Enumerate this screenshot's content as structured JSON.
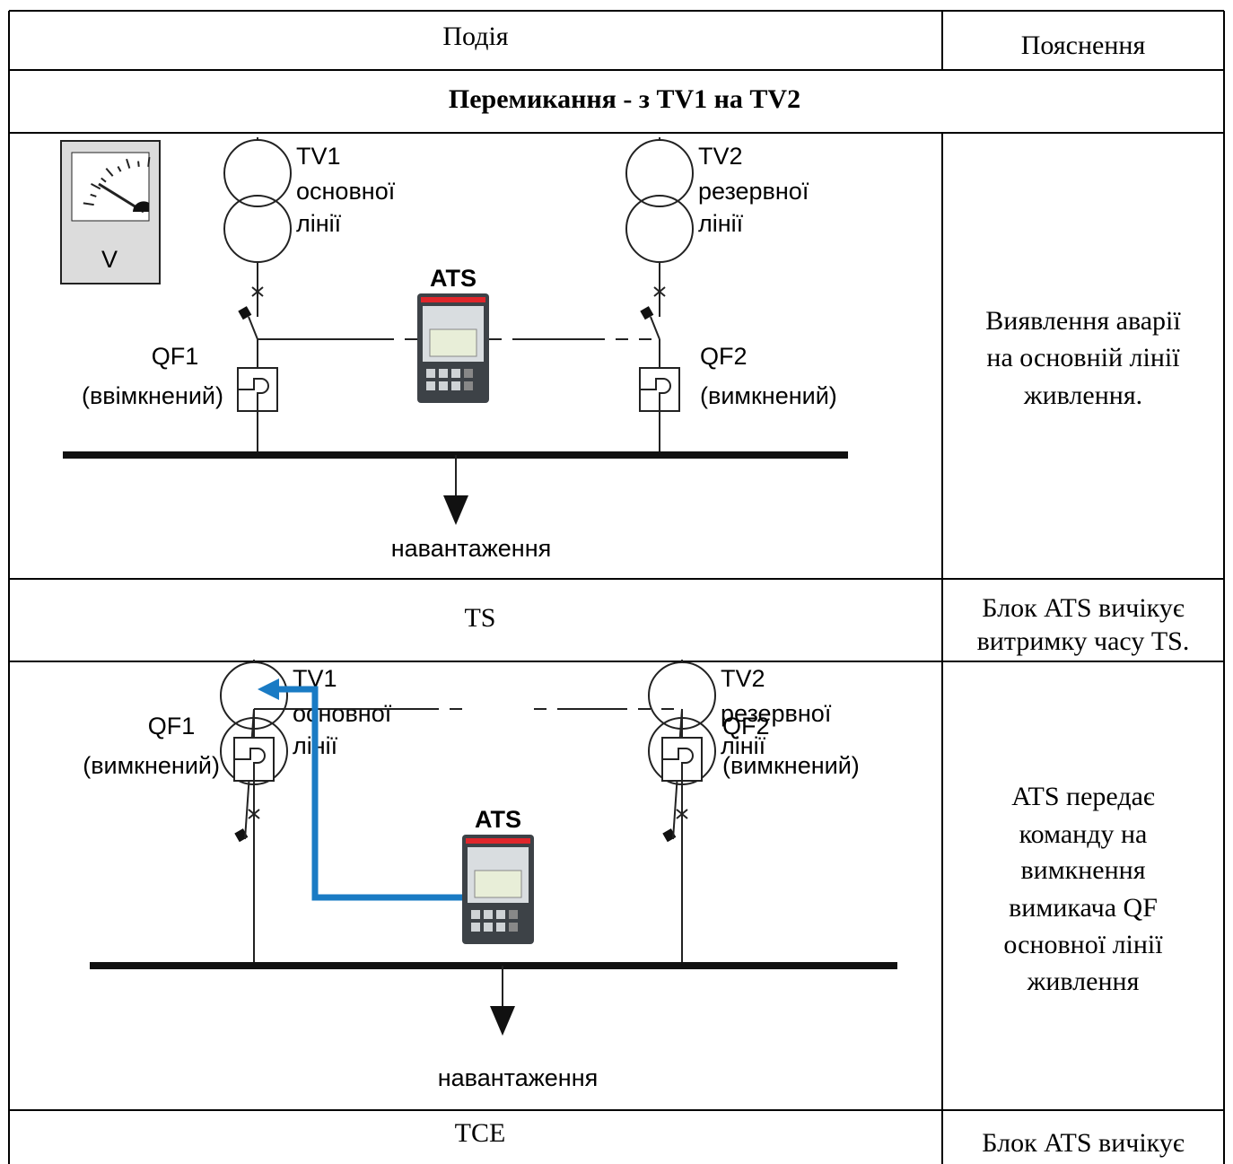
{
  "table": {
    "header": [
      "Подія",
      "Пояснення"
    ],
    "section": "Перемикання - з TV1 на TV2",
    "rows": [
      {
        "diagram": {
          "meter": "V",
          "ats": "ATS",
          "tv1": [
            "TV1",
            "основної",
            "лінії"
          ],
          "tv2": [
            "TV2",
            "резервної",
            "лінії"
          ],
          "qf1": [
            "QF1",
            "(ввімкнений)"
          ],
          "qf2": [
            "QF2",
            "(вимкнений)"
          ],
          "load": "навантаження"
        },
        "explanation": [
          "Виявлення аварії",
          "на основній лінії",
          "живлення."
        ]
      },
      {
        "event": "TS",
        "explanation": [
          "Блок ATS вичікує",
          "витримку часу TS."
        ]
      },
      {
        "diagram": {
          "ats": "ATS",
          "tv1": [
            "TV1",
            "основної",
            "лінії"
          ],
          "tv2": [
            "TV2",
            "резервної",
            "лінії"
          ],
          "qf1": [
            "QF1",
            "(вимкнений)"
          ],
          "qf2": [
            "QF2",
            "(вимкнений)"
          ],
          "load": "навантаження"
        },
        "explanation": [
          "ATS передає",
          "команду на",
          "вимкнення",
          "вимикача QF",
          "основної лінії",
          "живлення"
        ]
      },
      {
        "event": "TCE",
        "explanation": [
          "Блок ATS вичікує"
        ]
      }
    ]
  }
}
